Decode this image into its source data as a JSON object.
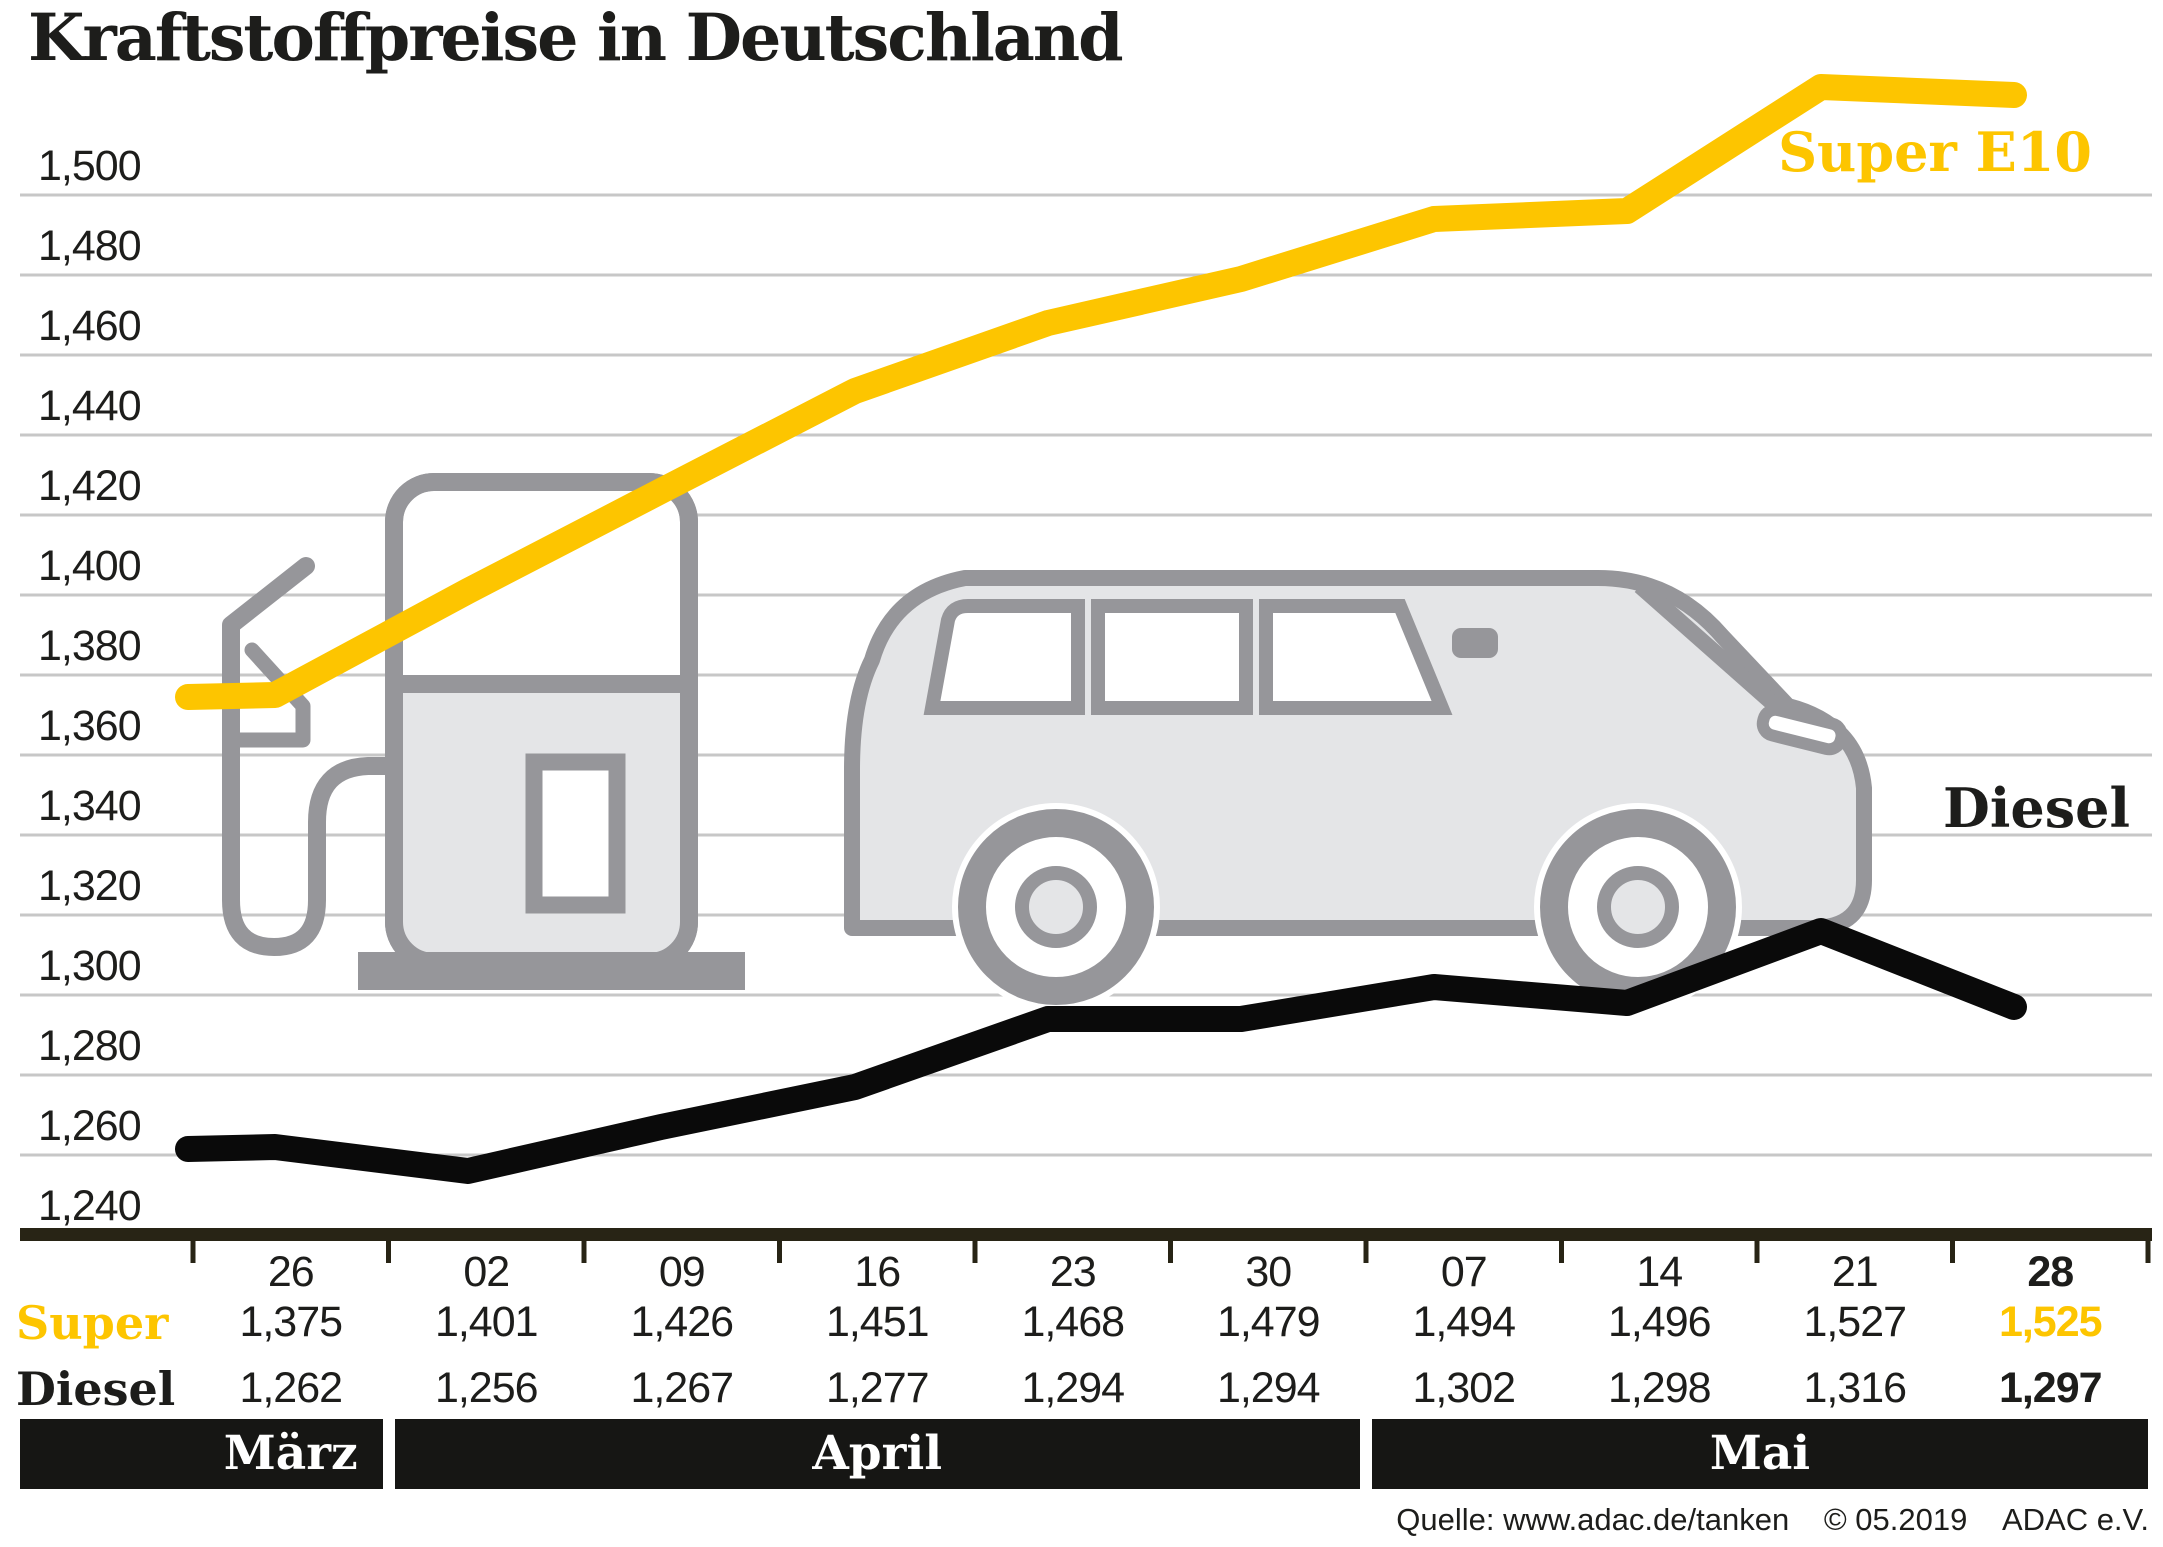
{
  "title": "Kraftstoffpreise in Deutschland",
  "colors": {
    "super_yellow": "#fdc500",
    "diesel_black": "#0a0a0a",
    "grid_gray": "#c7c7c7",
    "axis_dark": "#282415",
    "illustration_stroke": "#96969a",
    "illustration_fill": "#e4e5e7",
    "month_band_bg": "#161614",
    "text": "#1d1d1b"
  },
  "chart_data": {
    "type": "line",
    "title": "Kraftstoffpreise in Deutschland",
    "categories": [
      "26",
      "02",
      "09",
      "16",
      "23",
      "30",
      "07",
      "14",
      "21",
      "28"
    ],
    "months": [
      {
        "label": "März",
        "span": [
          0,
          0
        ]
      },
      {
        "label": "April",
        "span": [
          1,
          5
        ]
      },
      {
        "label": "Mai",
        "span": [
          6,
          9
        ]
      }
    ],
    "y_axis_labels": [
      "1,500",
      "1,480",
      "1,460",
      "1,440",
      "1,420",
      "1,400",
      "1,380",
      "1,360",
      "1,340",
      "1,320",
      "1,300",
      "1,280",
      "1,260",
      "1,240"
    ],
    "ylim": [
      1.24,
      1.5
    ],
    "grid": true,
    "legend_position": "inline line-end labels",
    "series": [
      {
        "name": "Super E10",
        "color": "#fdc500",
        "values": [
          1.375,
          1.401,
          1.426,
          1.451,
          1.468,
          1.479,
          1.494,
          1.496,
          1.527,
          1.525
        ]
      },
      {
        "name": "Diesel",
        "color": "#0a0a0a",
        "values": [
          1.262,
          1.256,
          1.267,
          1.277,
          1.294,
          1.294,
          1.302,
          1.298,
          1.316,
          1.297
        ]
      }
    ]
  },
  "table": {
    "row_labels": [
      "Super",
      "Diesel"
    ]
  },
  "line_labels": {
    "super": "Super E10",
    "diesel": "Diesel"
  },
  "source": {
    "quelle": "Quelle: www.adac.de/tanken",
    "copyright": "© 05.2019",
    "org": "ADAC e.V."
  }
}
